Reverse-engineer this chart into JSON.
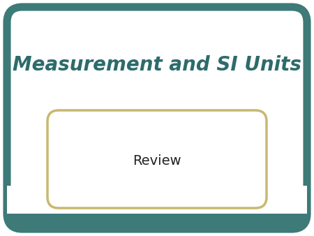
{
  "title": "Measurement and SI Units",
  "subtitle": "Review",
  "bg_color": "#ffffff",
  "outer_border_color": "#3d7a78",
  "outer_fill_color": "#3d7a78",
  "inner_box_color": "#ffffff",
  "inner_box_border_color": "#c8b870",
  "title_color": "#2e6b6b",
  "title_fontsize": 20,
  "subtitle_fontsize": 14,
  "subtitle_color": "#222222",
  "fig_width": 4.5,
  "fig_height": 3.38,
  "dpi": 100
}
